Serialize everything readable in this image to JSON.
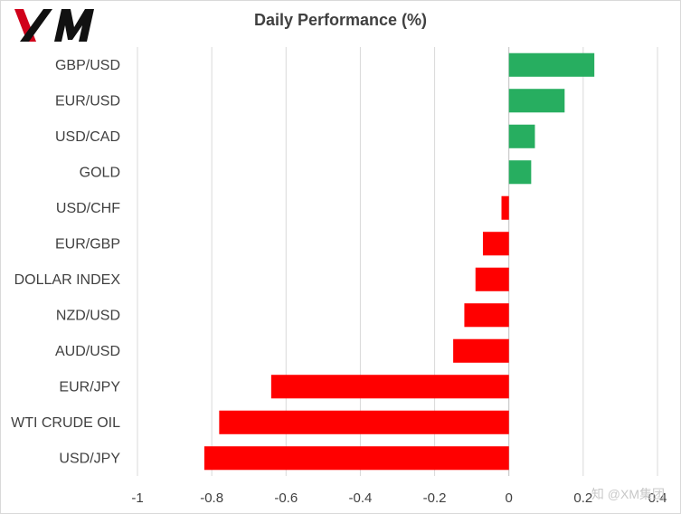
{
  "brand": {
    "logo_text": "XM",
    "logo_color": "#111111",
    "logo_accent": "#d0021b"
  },
  "watermark": "知 @XM集团",
  "chart_data": {
    "type": "bar",
    "orientation": "horizontal",
    "title": "Daily Performance (%)",
    "categories": [
      "GBP/USD",
      "EUR/USD",
      "USD/CAD",
      "GOLD",
      "USD/CHF",
      "EUR/GBP",
      "DOLLAR INDEX",
      "NZD/USD",
      "AUD/USD",
      "EUR/JPY",
      "WTI CRUDE OIL",
      "USD/JPY"
    ],
    "values": [
      0.23,
      0.15,
      0.07,
      0.06,
      -0.02,
      -0.07,
      -0.09,
      -0.12,
      -0.15,
      -0.64,
      -0.78,
      -0.82
    ],
    "xlim": [
      -1,
      0.4
    ],
    "xticks": [
      -1,
      -0.8,
      -0.6,
      -0.4,
      -0.2,
      0,
      0.2,
      0.4
    ],
    "xtick_labels": [
      "-1",
      "-0.8",
      "-0.6",
      "-0.4",
      "-0.2",
      "0",
      "0.2",
      "0.4"
    ],
    "grid": true,
    "colors": {
      "positive": "#27ae60",
      "negative": "#ff0000",
      "grid": "#d9d9d9",
      "axis": "#bfbfbf",
      "text": "#404040"
    }
  }
}
